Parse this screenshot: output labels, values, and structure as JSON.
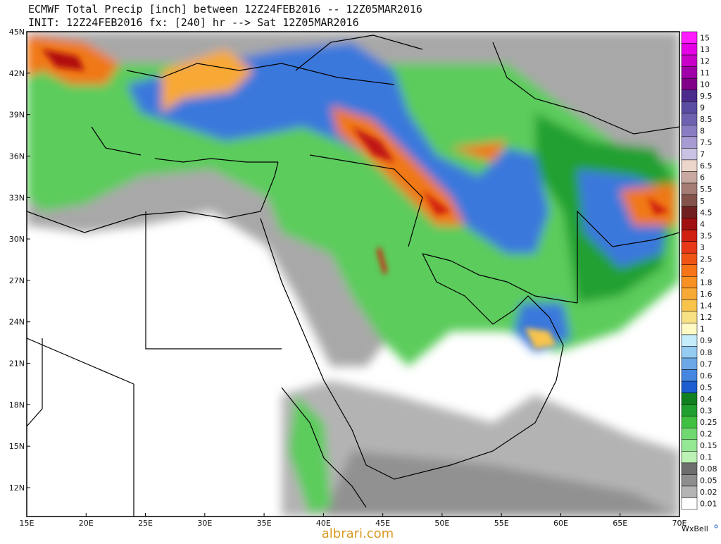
{
  "header": {
    "line1": "ECMWF Total Precip [inch] between 12Z24FEB2016 -- 12Z05MAR2016",
    "line2": "INIT: 12Z24FEB2016 fx: [240] hr --> Sat 12Z05MAR2016"
  },
  "lat_labels": [
    "45N",
    "42N",
    "39N",
    "36N",
    "33N",
    "30N",
    "27N",
    "24N",
    "21N",
    "18N",
    "15N",
    "12N"
  ],
  "lon_labels": [
    "15E",
    "20E",
    "25E",
    "30E",
    "35E",
    "40E",
    "45E",
    "50E",
    "55E",
    "60E",
    "65E",
    "70E"
  ],
  "colorbar": [
    {
      "label": "15",
      "color": "#ff1cff"
    },
    {
      "label": "13",
      "color": "#e600e6"
    },
    {
      "label": "12",
      "color": "#c800c8"
    },
    {
      "label": "11",
      "color": "#a000a8"
    },
    {
      "label": "10",
      "color": "#800088"
    },
    {
      "label": "9.5",
      "color": "#4b2c8c"
    },
    {
      "label": "9",
      "color": "#5a4ca0"
    },
    {
      "label": "8.5",
      "color": "#6e62b0"
    },
    {
      "label": "8",
      "color": "#8a7cc2"
    },
    {
      "label": "7.5",
      "color": "#a89ad2"
    },
    {
      "label": "7",
      "color": "#cac2e2"
    },
    {
      "label": "6.5",
      "color": "#ecd6cc"
    },
    {
      "label": "6",
      "color": "#c8a8a0"
    },
    {
      "label": "5.5",
      "color": "#a47c74"
    },
    {
      "label": "5",
      "color": "#84544c"
    },
    {
      "label": "4.5",
      "color": "#702020"
    },
    {
      "label": "4",
      "color": "#a01010"
    },
    {
      "label": "3.5",
      "color": "#d02010"
    },
    {
      "label": "3",
      "color": "#e83818"
    },
    {
      "label": "2.5",
      "color": "#f05414"
    },
    {
      "label": "2",
      "color": "#f87418"
    },
    {
      "label": "1.8",
      "color": "#f89024"
    },
    {
      "label": "1.6",
      "color": "#f8a834"
    },
    {
      "label": "1.4",
      "color": "#f8c44c"
    },
    {
      "label": "1.2",
      "color": "#f8e084"
    },
    {
      "label": "1",
      "color": "#fffac4"
    },
    {
      "label": "0.9",
      "color": "#c4ecfa"
    },
    {
      "label": "0.8",
      "color": "#94ccf2"
    },
    {
      "label": "0.7",
      "color": "#6ca8e8"
    },
    {
      "label": "0.6",
      "color": "#4486e0"
    },
    {
      "label": "0.5",
      "color": "#1c5ed0"
    },
    {
      "label": "0.4",
      "color": "#108020"
    },
    {
      "label": "0.3",
      "color": "#20a030"
    },
    {
      "label": "0.25",
      "color": "#40c040"
    },
    {
      "label": "0.2",
      "color": "#70d870"
    },
    {
      "label": "0.15",
      "color": "#94e894"
    },
    {
      "label": "0.1",
      "color": "#bcf2b4"
    },
    {
      "label": "0.08",
      "color": "#6e6e6e"
    },
    {
      "label": "0.05",
      "color": "#8e8e8e"
    },
    {
      "label": "0.02",
      "color": "#b4b4b4"
    },
    {
      "label": "0.01",
      "color": "#ffffff"
    }
  ],
  "watermark": "albrari.com",
  "brand": "WxBell"
}
